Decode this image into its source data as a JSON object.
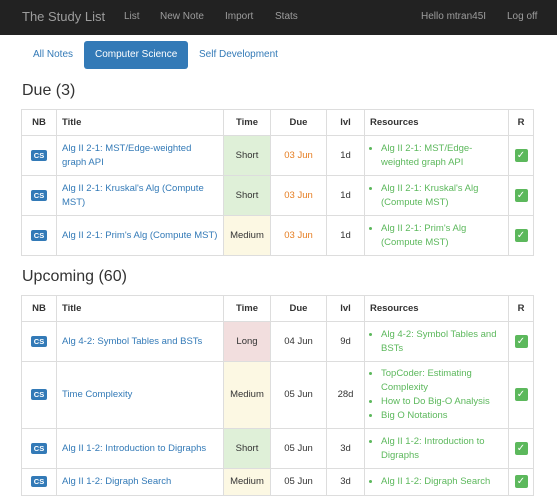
{
  "nav": {
    "brand": "The Study List",
    "links": [
      "List",
      "New Note",
      "Import",
      "Stats"
    ],
    "user": "Hello mtran45I",
    "logoff": "Log off"
  },
  "tabs": [
    {
      "label": "All Notes",
      "active": false
    },
    {
      "label": "Computer Science",
      "active": true
    },
    {
      "label": "Self Development",
      "active": false
    }
  ],
  "headers": [
    "NB",
    "Title",
    "Time",
    "Due",
    "lvl",
    "Resources",
    "R"
  ],
  "due": {
    "heading": "Due (3)",
    "rows": [
      {
        "nb": "CS",
        "title": "Alg II 2-1: MST/Edge-weighted graph API",
        "time": "Short",
        "due": "03 Jun",
        "lvl": "1d",
        "resources": [
          "Alg II 2-1: MST/Edge-weighted graph API"
        ],
        "check": "✓"
      },
      {
        "nb": "CS",
        "title": "Alg II 2-1: Kruskal's Alg (Compute MST)",
        "time": "Short",
        "due": "03 Jun",
        "lvl": "1d",
        "resources": [
          "Alg II 2-1: Kruskal's Alg (Compute MST)"
        ],
        "check": "✓"
      },
      {
        "nb": "CS",
        "title": "Alg II 2-1: Prim's Alg (Compute MST)",
        "time": "Medium",
        "due": "03 Jun",
        "lvl": "1d",
        "resources": [
          "Alg II 2-1: Prim's Alg (Compute MST)"
        ],
        "check": "✓"
      }
    ]
  },
  "upcoming": {
    "heading": "Upcoming (60)",
    "rows": [
      {
        "nb": "CS",
        "title": "Alg 4-2: Symbol Tables and BSTs",
        "time": "Long",
        "due": "04 Jun",
        "lvl": "9d",
        "resources": [
          "Alg 4-2: Symbol Tables and BSTs"
        ],
        "check": "✓"
      },
      {
        "nb": "CS",
        "title": "Time Complexity",
        "time": "Medium",
        "due": "05 Jun",
        "lvl": "28d",
        "resources": [
          "TopCoder: Estimating Complexity",
          "How to Do Big-O Analysis",
          "Big O Notations"
        ],
        "check": "✓"
      },
      {
        "nb": "CS",
        "title": "Alg II 1-2: Introduction to Digraphs",
        "time": "Short",
        "due": "05 Jun",
        "lvl": "3d",
        "resources": [
          "Alg II 1-2: Introduction to Digraphs"
        ],
        "check": "✓"
      },
      {
        "nb": "CS",
        "title": "Alg II 1-2: Digraph Search",
        "time": "Medium",
        "due": "05 Jun",
        "lvl": "3d",
        "resources": [
          "Alg II 1-2: Digraph Search"
        ],
        "check": "✓"
      }
    ]
  }
}
